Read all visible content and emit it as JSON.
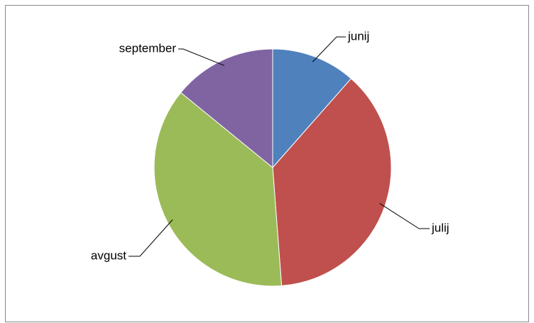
{
  "chart_data": {
    "type": "pie",
    "categories": [
      "junij",
      "julij",
      "avgust",
      "september"
    ],
    "values": [
      11.5,
      37.3,
      37.1,
      14.1
    ],
    "colors": [
      "#4f81bd",
      "#c0504d",
      "#9bbb59",
      "#8064a2"
    ]
  }
}
